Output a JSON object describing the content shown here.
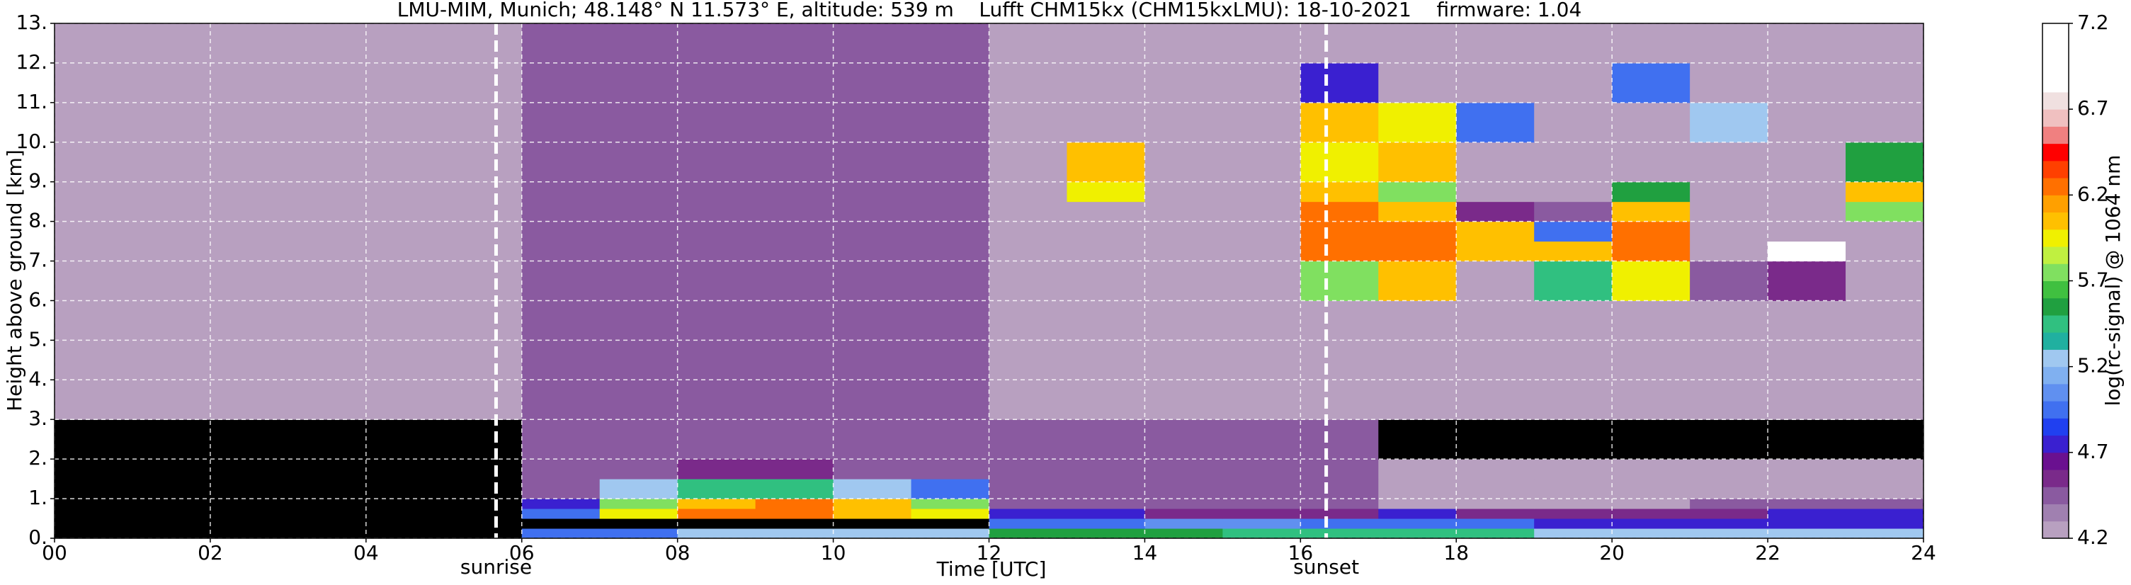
{
  "chart_data": {
    "type": "heatmap",
    "title": "LMU-MIM, Munich; 48.148° N 11.573° E, altitude: 539 m    Lufft CHM15kx (CHM15kxLMU): 18-10-2021    firmware: 1.04",
    "xlabel": "Time [UTC]",
    "ylabel": "Height above ground [km]",
    "colorbar_label": "log(rc-signal) @ 1064 nm",
    "xlim": [
      0,
      24
    ],
    "ylim": [
      0,
      13
    ],
    "xticks": [
      {
        "value": 0,
        "label": "00"
      },
      {
        "value": 2,
        "label": "02"
      },
      {
        "value": 4,
        "label": "04"
      },
      {
        "value": 6,
        "label": "06"
      },
      {
        "value": 8,
        "label": "08"
      },
      {
        "value": 10,
        "label": "10"
      },
      {
        "value": 12,
        "label": "12"
      },
      {
        "value": 14,
        "label": "14"
      },
      {
        "value": 16,
        "label": "16"
      },
      {
        "value": 18,
        "label": "18"
      },
      {
        "value": 20,
        "label": "20"
      },
      {
        "value": 22,
        "label": "22"
      },
      {
        "value": 24,
        "label": "24"
      }
    ],
    "yticks": [
      {
        "value": 0,
        "label": "0."
      },
      {
        "value": 1,
        "label": "1."
      },
      {
        "value": 2,
        "label": "2."
      },
      {
        "value": 3,
        "label": "3."
      },
      {
        "value": 4,
        "label": "4."
      },
      {
        "value": 5,
        "label": "5."
      },
      {
        "value": 6,
        "label": "6."
      },
      {
        "value": 7,
        "label": "7."
      },
      {
        "value": 8,
        "label": "8."
      },
      {
        "value": 9,
        "label": "9."
      },
      {
        "value": 10,
        "label": "10."
      },
      {
        "value": 11,
        "label": "11."
      },
      {
        "value": 12,
        "label": "12."
      },
      {
        "value": 13,
        "label": "13."
      }
    ],
    "grid": true,
    "zlim": [
      4.2,
      7.2
    ],
    "zticks": [
      4.2,
      4.7,
      5.2,
      5.7,
      6.2,
      6.7,
      7.2
    ],
    "under_color": "#000000",
    "colors": [
      "#b8a0c0",
      "#a080b0",
      "#8a5aa0",
      "#7a2a8a",
      "#6a1090",
      "#3a20d0",
      "#2040f0",
      "#4070f0",
      "#6090f0",
      "#80b0f0",
      "#a0c8f0",
      "#20b0a0",
      "#30c080",
      "#20a040",
      "#40c040",
      "#80e060",
      "#c0f040",
      "#f0f000",
      "#ffc000",
      "#ffa000",
      "#ff7000",
      "#ff4000",
      "#ff0000",
      "#f08080",
      "#f0c0c0",
      "#f0e0e0",
      "#ffffff",
      "#ffffff",
      "#ffffff",
      "#ffffff"
    ],
    "x_edges": [
      0,
      1,
      2,
      3,
      4,
      5,
      6,
      7,
      8,
      9,
      10,
      11,
      12,
      13,
      14,
      15,
      16,
      17,
      18,
      19,
      20,
      21,
      22,
      23,
      24
    ],
    "y_edges": [
      0,
      0.25,
      0.5,
      0.75,
      1,
      1.5,
      2,
      3,
      4,
      5,
      6,
      7,
      7.5,
      8,
      8.5,
      9,
      10,
      11,
      12,
      13
    ],
    "z": [
      [
        4.0,
        4.0,
        4.0,
        4.0,
        4.0,
        4.0,
        5.0,
        5.0,
        5.2,
        5.3,
        5.3,
        5.2,
        5.6,
        5.6,
        5.6,
        5.5,
        5.5,
        5.4,
        5.4,
        5.3,
        5.3,
        5.2,
        5.2,
        5.2
      ],
      [
        4.0,
        4.0,
        4.0,
        4.0,
        4.0,
        4.0,
        4.0,
        4.0,
        4.0,
        4.0,
        4.0,
        4.0,
        5.0,
        5.0,
        5.1,
        5.1,
        5.0,
        5.0,
        4.9,
        4.8,
        4.8,
        4.8,
        4.8,
        4.8
      ],
      [
        4.0,
        4.0,
        4.0,
        4.0,
        4.0,
        4.0,
        5.0,
        5.9,
        6.2,
        6.3,
        6.1,
        5.9,
        4.8,
        4.7,
        4.6,
        4.6,
        4.6,
        4.7,
        4.6,
        4.6,
        4.6,
        4.6,
        4.7,
        4.7
      ],
      [
        4.0,
        4.0,
        4.0,
        4.0,
        4.0,
        4.0,
        4.8,
        5.7,
        6.1,
        6.2,
        6.0,
        5.8,
        4.5,
        4.5,
        4.4,
        4.4,
        4.4,
        4.3,
        4.3,
        4.3,
        4.3,
        4.4,
        4.4,
        4.4
      ],
      [
        4.0,
        4.0,
        4.0,
        4.0,
        4.0,
        4.0,
        4.5,
        5.2,
        5.4,
        5.5,
        5.3,
        5.0,
        4.4,
        4.4,
        4.4,
        4.4,
        4.4,
        4.3,
        4.3,
        4.3,
        4.3,
        4.3,
        4.3,
        4.3
      ],
      [
        4.0,
        4.0,
        4.0,
        4.0,
        4.0,
        4.0,
        4.4,
        4.5,
        4.6,
        4.6,
        4.5,
        4.5,
        4.4,
        4.4,
        4.4,
        4.4,
        4.4,
        4.2,
        4.2,
        4.2,
        4.2,
        4.2,
        4.2,
        4.2
      ],
      [
        4.0,
        4.0,
        4.0,
        4.0,
        4.0,
        4.0,
        4.4,
        4.4,
        4.4,
        4.4,
        4.4,
        4.4,
        4.4,
        4.4,
        4.4,
        4.4,
        4.4,
        4.1,
        4.1,
        4.1,
        4.1,
        4.1,
        4.1,
        4.1
      ],
      [
        4.2,
        4.2,
        4.2,
        4.2,
        4.2,
        4.2,
        4.4,
        4.4,
        4.4,
        4.4,
        4.4,
        4.4,
        4.3,
        4.3,
        4.3,
        4.3,
        4.3,
        4.2,
        4.2,
        4.2,
        4.2,
        4.2,
        4.2,
        4.2
      ],
      [
        4.2,
        4.2,
        4.2,
        4.2,
        4.2,
        4.2,
        4.4,
        4.4,
        4.4,
        4.4,
        4.4,
        4.4,
        4.3,
        4.3,
        4.3,
        4.3,
        4.3,
        4.2,
        4.2,
        4.2,
        4.2,
        4.2,
        4.2,
        4.2
      ],
      [
        4.2,
        4.2,
        4.2,
        4.2,
        4.2,
        4.2,
        4.4,
        4.4,
        4.4,
        4.4,
        4.4,
        4.4,
        4.3,
        4.3,
        4.3,
        4.3,
        4.3,
        4.2,
        4.2,
        4.2,
        4.2,
        4.2,
        4.2,
        4.2
      ],
      [
        4.2,
        4.2,
        4.2,
        4.2,
        4.2,
        4.2,
        4.4,
        4.4,
        4.4,
        4.4,
        4.4,
        4.4,
        4.3,
        4.3,
        4.3,
        4.3,
        5.8,
        6.0,
        4.3,
        5.5,
        5.9,
        4.5,
        4.6,
        4.2
      ],
      [
        4.2,
        4.2,
        4.2,
        4.2,
        4.2,
        4.2,
        4.4,
        4.4,
        4.4,
        4.4,
        4.4,
        4.4,
        4.3,
        4.3,
        4.3,
        4.3,
        6.2,
        6.3,
        6.1,
        6.0,
        6.2,
        4.3,
        6.9,
        4.2
      ],
      [
        4.2,
        4.2,
        4.2,
        4.2,
        4.2,
        4.2,
        4.4,
        4.4,
        4.4,
        4.4,
        4.4,
        4.4,
        4.3,
        4.3,
        4.3,
        4.3,
        6.3,
        6.2,
        6.0,
        5.0,
        6.3,
        4.3,
        4.3,
        4.2
      ],
      [
        4.2,
        4.2,
        4.2,
        4.2,
        4.2,
        4.2,
        4.4,
        4.4,
        4.4,
        4.4,
        4.4,
        4.4,
        4.3,
        4.3,
        4.3,
        4.3,
        6.2,
        6.0,
        4.6,
        4.4,
        6.1,
        4.3,
        4.3,
        5.8
      ],
      [
        4.2,
        4.2,
        4.2,
        4.2,
        4.2,
        4.2,
        4.4,
        4.4,
        4.4,
        4.4,
        4.4,
        4.4,
        4.3,
        5.9,
        4.3,
        4.3,
        6.0,
        5.8,
        4.3,
        4.3,
        5.6,
        4.3,
        4.3,
        6.0
      ],
      [
        4.2,
        4.2,
        4.2,
        4.2,
        4.2,
        4.2,
        4.4,
        4.4,
        4.4,
        4.4,
        4.4,
        4.4,
        4.3,
        6.0,
        4.3,
        4.3,
        5.9,
        6.1,
        4.3,
        4.3,
        4.3,
        4.3,
        4.3,
        5.6
      ],
      [
        4.2,
        4.2,
        4.2,
        4.2,
        4.2,
        4.2,
        4.4,
        4.4,
        4.4,
        4.4,
        4.4,
        4.4,
        4.3,
        4.3,
        4.3,
        4.3,
        6.1,
        5.9,
        5.0,
        4.3,
        4.3,
        5.2,
        4.3,
        4.2
      ],
      [
        4.2,
        4.2,
        4.2,
        4.2,
        4.2,
        4.2,
        4.4,
        4.4,
        4.4,
        4.4,
        4.4,
        4.4,
        4.3,
        4.3,
        4.3,
        4.3,
        4.8,
        4.3,
        4.3,
        4.3,
        5.0,
        4.3,
        4.3,
        4.2
      ],
      [
        4.2,
        4.2,
        4.2,
        4.2,
        4.2,
        4.2,
        4.4,
        4.4,
        4.4,
        4.4,
        4.4,
        4.4,
        4.3,
        4.3,
        4.3,
        4.3,
        4.3,
        4.2,
        4.2,
        4.2,
        4.2,
        4.2,
        4.2,
        4.2
      ]
    ],
    "annotations": [
      {
        "text": "sunrise",
        "x": 5.67
      },
      {
        "text": "sunset",
        "x": 16.33
      }
    ]
  }
}
